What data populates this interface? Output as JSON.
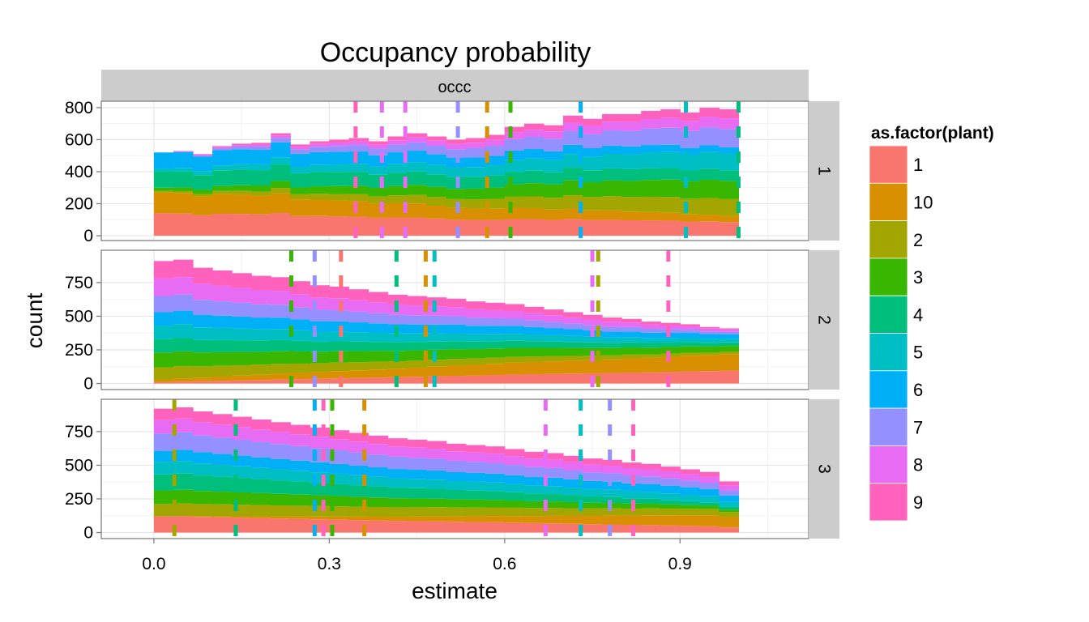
{
  "chart_data": {
    "type": "bar",
    "title": "Occupancy probability",
    "xlabel": "estimate",
    "ylabel": "count",
    "strip_top": "occc",
    "x_range": [
      -0.09,
      1.12
    ],
    "x_ticks": [
      0.0,
      0.3,
      0.6,
      0.9
    ],
    "x_tick_labels": [
      "0.0",
      "0.3",
      "0.6",
      "0.9"
    ],
    "grid": true,
    "legend_position": "right",
    "legend": {
      "title": "as.factor(plant)",
      "entries": [
        {
          "label": "1",
          "color": "#F8766D"
        },
        {
          "label": "10",
          "color": "#D89000"
        },
        {
          "label": "2",
          "color": "#A3A500"
        },
        {
          "label": "3",
          "color": "#39B600"
        },
        {
          "label": "4",
          "color": "#00BF7D"
        },
        {
          "label": "5",
          "color": "#00BFC4"
        },
        {
          "label": "6",
          "color": "#00B0F6"
        },
        {
          "label": "7",
          "color": "#9590FF"
        },
        {
          "label": "8",
          "color": "#E76BF3"
        },
        {
          "label": "9",
          "color": "#FF62BC"
        }
      ]
    },
    "stack_order": [
      "1",
      "10",
      "2",
      "3",
      "4",
      "5",
      "6",
      "7",
      "8",
      "9"
    ],
    "bins": {
      "start": 0.0,
      "end": 1.0,
      "count": 30
    },
    "panels": [
      {
        "label": "1",
        "ylim": [
          -30,
          840
        ],
        "y_ticks": [
          0,
          200,
          400,
          600,
          800
        ],
        "y_tick_labels": [
          "0",
          "200",
          "400",
          "600",
          "800"
        ],
        "totals": [
          520,
          530,
          510,
          560,
          575,
          580,
          640,
          570,
          590,
          600,
          610,
          590,
          620,
          640,
          620,
          600,
          610,
          630,
          680,
          700,
          690,
          750,
          730,
          760,
          760,
          780,
          790,
          770,
          800,
          790
        ],
        "profiles": {
          "1": [
            140,
            90
          ],
          "10": [
            130,
            40
          ],
          "2": [
            10,
            110
          ],
          "3": [
            20,
            120
          ],
          "4": [
            100,
            70
          ],
          "5": [
            20,
            110
          ],
          "6": [
            100,
            40
          ],
          "7": [
            0,
            120
          ],
          "8": [
            0,
            70
          ],
          "9": [
            0,
            60
          ]
        },
        "lines": [
          {
            "plant": "9",
            "x": 0.345
          },
          {
            "plant": "8",
            "x": 0.39
          },
          {
            "plant": "8",
            "x": 0.43
          },
          {
            "plant": "7",
            "x": 0.52
          },
          {
            "plant": "10",
            "x": 0.57
          },
          {
            "plant": "3",
            "x": 0.61
          },
          {
            "plant": "6",
            "x": 0.73
          },
          {
            "plant": "5",
            "x": 0.91
          },
          {
            "plant": "4",
            "x": 1.0
          }
        ]
      },
      {
        "label": "2",
        "ylim": [
          -45,
          990
        ],
        "y_ticks": [
          0,
          250,
          500,
          750
        ],
        "y_tick_labels": [
          "0",
          "250",
          "500",
          "750"
        ],
        "totals": [
          910,
          920,
          860,
          840,
          820,
          800,
          790,
          760,
          730,
          720,
          700,
          680,
          660,
          650,
          640,
          630,
          610,
          600,
          590,
          570,
          550,
          530,
          510,
          490,
          480,
          460,
          450,
          440,
          420,
          410
        ],
        "profiles": {
          "1": [
            10,
            110
          ],
          "10": [
            20,
            140
          ],
          "2": [
            90,
            20
          ],
          "3": [
            110,
            50
          ],
          "4": [
            100,
            30
          ],
          "5": [
            100,
            30
          ],
          "6": [
            100,
            40
          ],
          "7": [
            120,
            20
          ],
          "8": [
            130,
            20
          ],
          "9": [
            130,
            10
          ]
        },
        "lines": [
          {
            "plant": "3",
            "x": 0.235
          },
          {
            "plant": "7",
            "x": 0.275
          },
          {
            "plant": "1",
            "x": 0.32
          },
          {
            "plant": "4",
            "x": 0.415
          },
          {
            "plant": "10",
            "x": 0.465
          },
          {
            "plant": "5",
            "x": 0.48
          },
          {
            "plant": "8",
            "x": 0.75
          },
          {
            "plant": "2",
            "x": 0.76
          },
          {
            "plant": "9",
            "x": 0.88
          }
        ]
      },
      {
        "label": "3",
        "ylim": [
          -45,
          990
        ],
        "y_ticks": [
          0,
          250,
          500,
          750
        ],
        "y_tick_labels": [
          "0",
          "250",
          "500",
          "750"
        ],
        "totals": [
          920,
          930,
          900,
          880,
          860,
          840,
          820,
          800,
          780,
          760,
          740,
          720,
          700,
          690,
          680,
          660,
          650,
          640,
          620,
          600,
          590,
          570,
          550,
          540,
          520,
          510,
          490,
          470,
          450,
          380
        ],
        "profiles": {
          "1": [
            130,
            40
          ],
          "10": [
            0,
            80
          ],
          "2": [
            100,
            40
          ],
          "3": [
            110,
            20
          ],
          "4": [
            130,
            20
          ],
          "5": [
            100,
            40
          ],
          "6": [
            90,
            50
          ],
          "7": [
            140,
            40
          ],
          "8": [
            110,
            40
          ],
          "9": [
            90,
            30
          ]
        },
        "lines": [
          {
            "plant": "2",
            "x": 0.035
          },
          {
            "plant": "4",
            "x": 0.14
          },
          {
            "plant": "6",
            "x": 0.275
          },
          {
            "plant": "9",
            "x": 0.29
          },
          {
            "plant": "3",
            "x": 0.305
          },
          {
            "plant": "10",
            "x": 0.36
          },
          {
            "plant": "8",
            "x": 0.67
          },
          {
            "plant": "5",
            "x": 0.73
          },
          {
            "plant": "7",
            "x": 0.78
          },
          {
            "plant": "9",
            "x": 0.82
          }
        ]
      }
    ]
  }
}
